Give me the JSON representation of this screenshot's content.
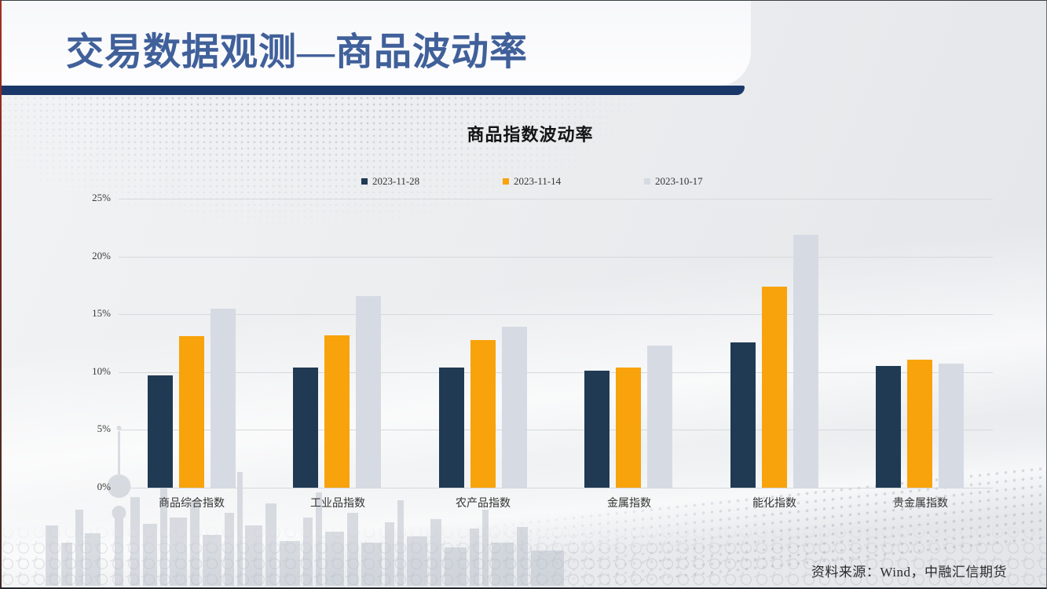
{
  "slide": {
    "title": "交易数据观测—商品波动率",
    "source": "资料来源：Wind，中融汇信期货"
  },
  "theme": {
    "title_color": "#40609A",
    "divider_color": "#1A3769",
    "background_base": "#EBEDEF",
    "text_color": "#333333"
  },
  "chart_data": {
    "type": "bar",
    "title": "商品指数波动率",
    "categories": [
      "商品综合指数",
      "工业品指数",
      "农产品指数",
      "金属指数",
      "能化指数",
      "贵金属指数"
    ],
    "series": [
      {
        "name": "2023-11-28",
        "color": "#203A54",
        "values": [
          9.7,
          10.4,
          10.4,
          10.1,
          12.6,
          10.5
        ]
      },
      {
        "name": "2023-11-14",
        "color": "#F8A30B",
        "values": [
          13.1,
          13.2,
          12.8,
          10.4,
          17.4,
          11.1
        ]
      },
      {
        "name": "2023-10-17",
        "color": "#D6DBE3",
        "values": [
          15.5,
          16.6,
          13.9,
          12.3,
          21.9,
          10.7
        ]
      }
    ],
    "xlabel": "",
    "ylabel": "",
    "ylim": [
      0,
      25
    ],
    "ytick_values": [
      0,
      5,
      10,
      15,
      20,
      25
    ],
    "ytick_labels": [
      "0%",
      "5%",
      "10%",
      "15%",
      "20%",
      "25%"
    ],
    "grid": true,
    "legend_position": "top"
  }
}
